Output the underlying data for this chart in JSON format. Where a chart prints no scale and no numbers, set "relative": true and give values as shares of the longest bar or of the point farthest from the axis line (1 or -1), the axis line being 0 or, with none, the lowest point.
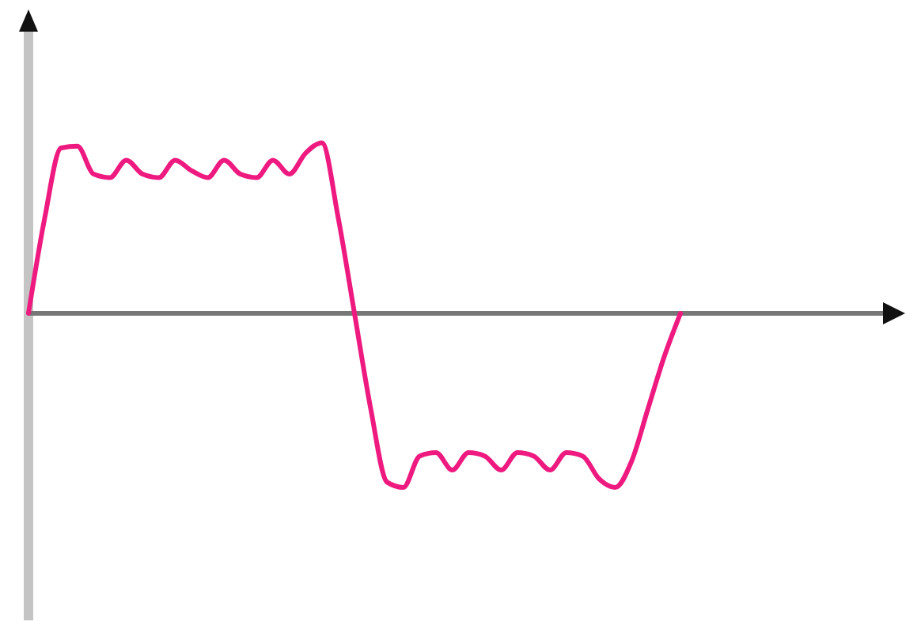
{
  "chart_data": {
    "type": "line",
    "relative": true,
    "categories": [
      null,
      null,
      null,
      null,
      null,
      null,
      null,
      null,
      null,
      null,
      null,
      null,
      null,
      null,
      null,
      null,
      null,
      null,
      null,
      null,
      null,
      null,
      null,
      null,
      null,
      null,
      null,
      null,
      null,
      null,
      null,
      null,
      null,
      null,
      null,
      null,
      null,
      null,
      null,
      null,
      null,
      null,
      null,
      null,
      null,
      null,
      null,
      null,
      null,
      null,
      null,
      null,
      null,
      null,
      null
    ],
    "series": [
      {
        "color": "#ee1a80",
        "values": [
          0,
          0.55,
          0.95,
          0.96,
          0.8,
          0.78,
          0.88,
          0.8,
          0.78,
          0.88,
          0.82,
          0.78,
          0.88,
          0.8,
          0.78,
          0.88,
          0.8,
          0.92,
          0.98,
          0.55,
          0,
          -0.55,
          -0.97,
          -1,
          -0.82,
          -0.8,
          -0.9,
          -0.8,
          -0.82,
          -0.9,
          -0.8,
          -0.82,
          -0.9,
          -0.8,
          -0.82,
          -0.95,
          -1,
          -0.85,
          -0.55,
          -0.25,
          0,
          null,
          null,
          null,
          null,
          null,
          null,
          null,
          null,
          null,
          null,
          null,
          null,
          null,
          null
        ]
      }
    ],
    "line_style": "solid",
    "marker": "none"
  }
}
